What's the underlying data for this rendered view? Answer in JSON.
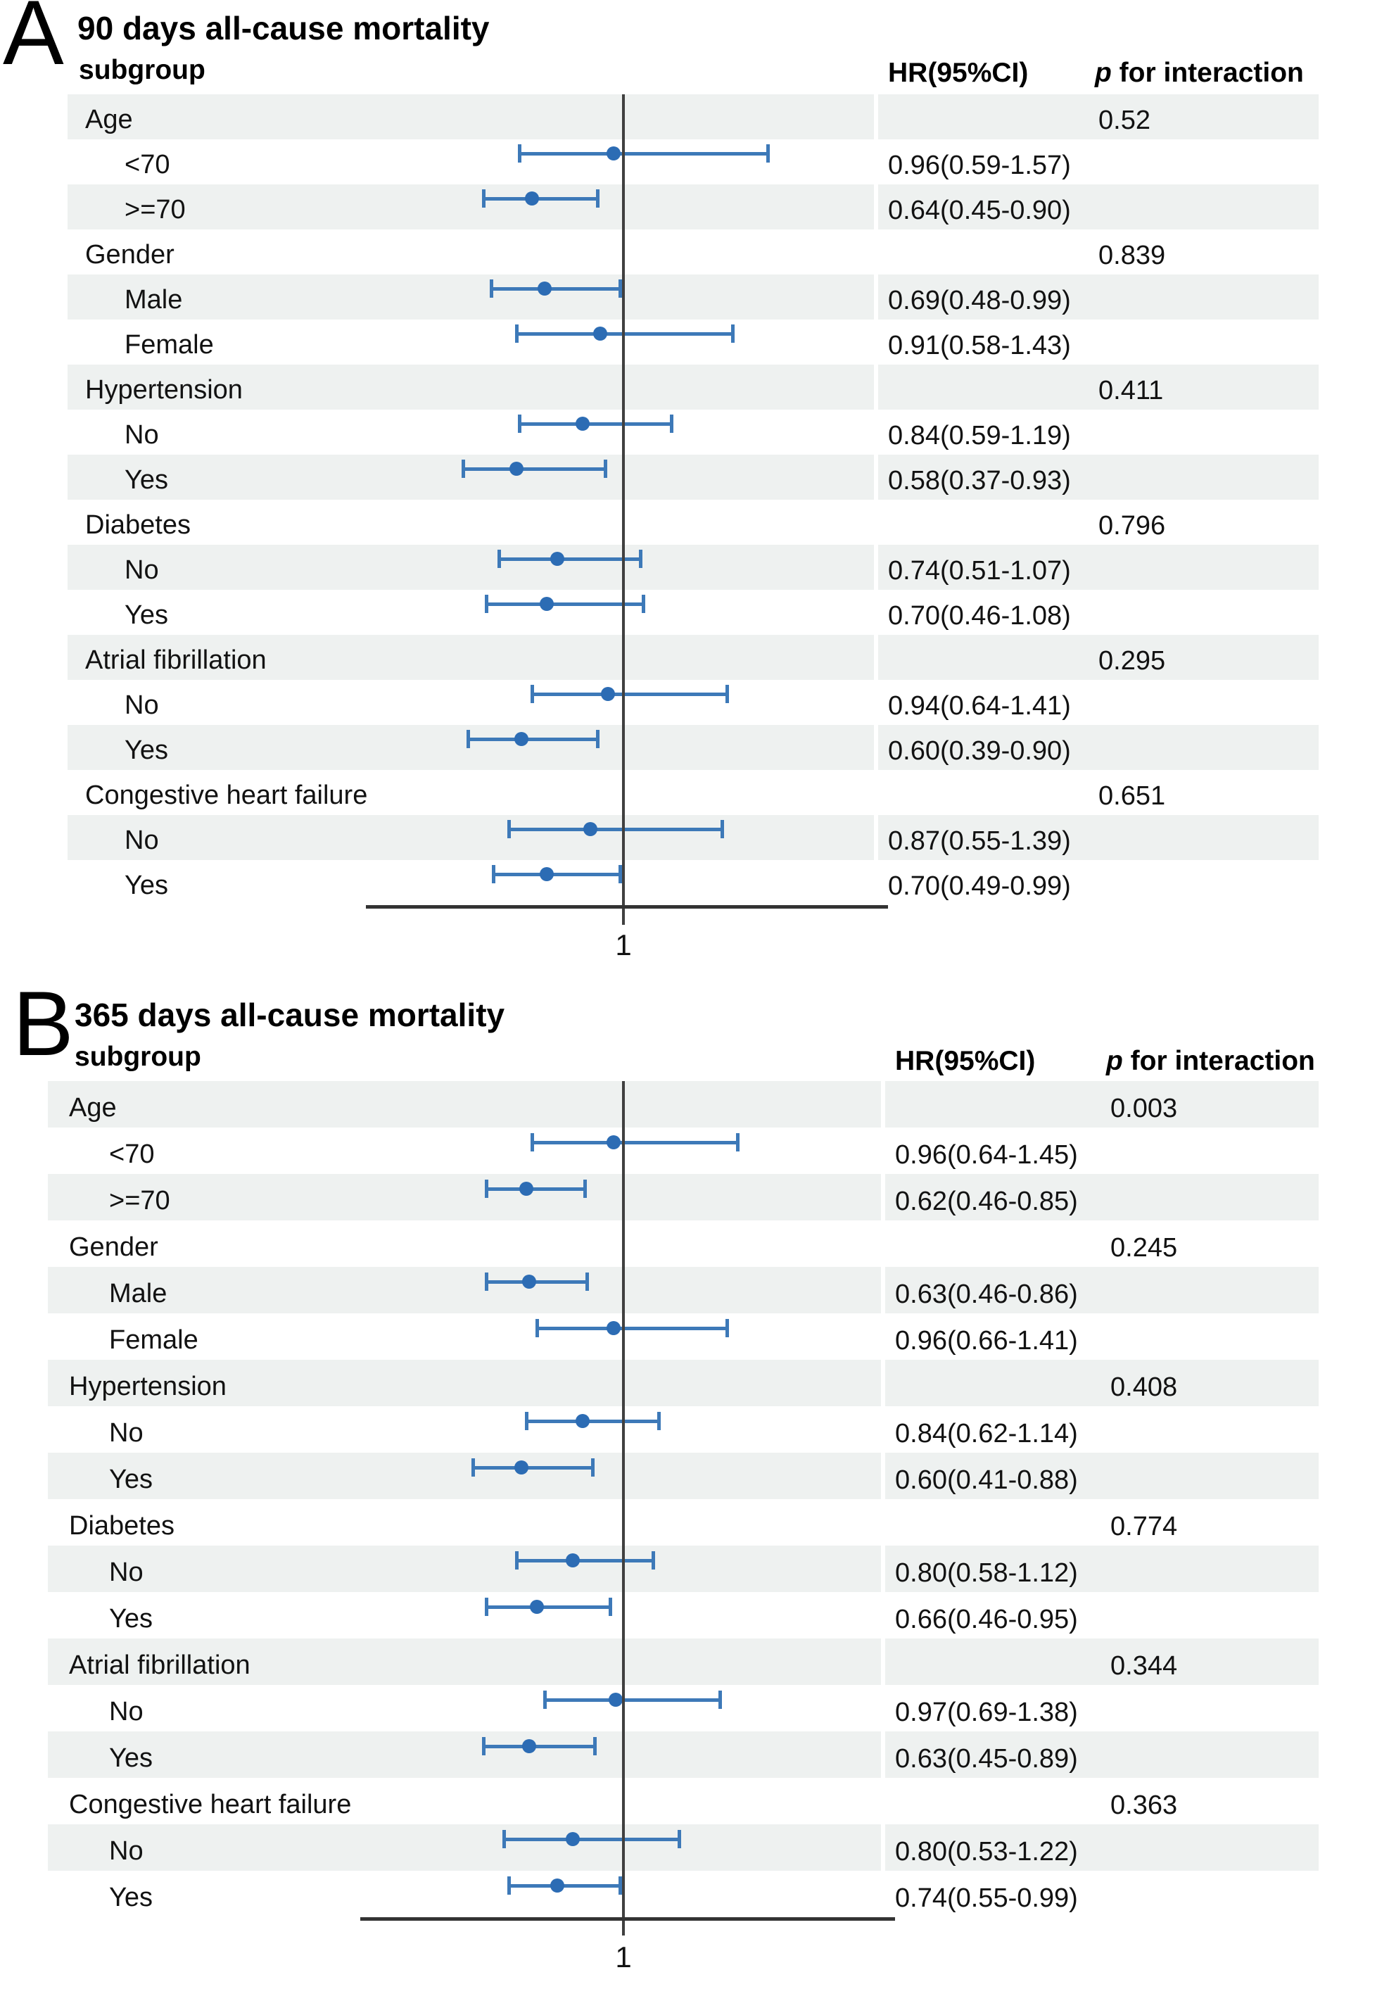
{
  "figure_type": "forest-plot",
  "colors": {
    "band": "#eef1f0",
    "ci_bar": "#3d79b8",
    "marker": "#2c6cb4",
    "reference_line": "#404040",
    "axis_line": "#333333",
    "text": "#121212"
  },
  "chart_data": {
    "type": "forest",
    "x_axis": {
      "scale": "linear",
      "reference_value": 1,
      "tick_labels": [
        "1"
      ]
    },
    "panels": [
      {
        "letter": "A",
        "title": "90 days all-cause mortality",
        "columns": {
          "subgroup": "subgroup",
          "hr": "HR(95%CI)",
          "p_italic": "p",
          "p_rest": " for interaction"
        },
        "axis_tick": "1",
        "rows": [
          {
            "kind": "group",
            "label": "Age",
            "p": "0.52"
          },
          {
            "kind": "item",
            "label": "<70",
            "hr_text": "0.96(0.59-1.57)",
            "est": 0.96,
            "lo": 0.59,
            "hi": 1.57
          },
          {
            "kind": "item",
            "label": ">=70",
            "hr_text": "0.64(0.45-0.90)",
            "est": 0.64,
            "lo": 0.45,
            "hi": 0.9
          },
          {
            "kind": "group",
            "label": "Gender",
            "p": "0.839"
          },
          {
            "kind": "item",
            "label": "Male",
            "hr_text": "0.69(0.48-0.99)",
            "est": 0.69,
            "lo": 0.48,
            "hi": 0.99
          },
          {
            "kind": "item",
            "label": "Female",
            "hr_text": "0.91(0.58-1.43)",
            "est": 0.91,
            "lo": 0.58,
            "hi": 1.43
          },
          {
            "kind": "group",
            "label": "Hypertension",
            "p": "0.411"
          },
          {
            "kind": "item",
            "label": "No",
            "hr_text": "0.84(0.59-1.19)",
            "est": 0.84,
            "lo": 0.59,
            "hi": 1.19
          },
          {
            "kind": "item",
            "label": "Yes",
            "hr_text": "0.58(0.37-0.93)",
            "est": 0.58,
            "lo": 0.37,
            "hi": 0.93
          },
          {
            "kind": "group",
            "label": "Diabetes",
            "p": "0.796"
          },
          {
            "kind": "item",
            "label": "No",
            "hr_text": "0.74(0.51-1.07)",
            "est": 0.74,
            "lo": 0.51,
            "hi": 1.07
          },
          {
            "kind": "item",
            "label": "Yes",
            "hr_text": "0.70(0.46-1.08)",
            "est": 0.7,
            "lo": 0.46,
            "hi": 1.08
          },
          {
            "kind": "group",
            "label": "Atrial fibrillation",
            "p": "0.295"
          },
          {
            "kind": "item",
            "label": "No",
            "hr_text": "0.94(0.64-1.41)",
            "est": 0.94,
            "lo": 0.64,
            "hi": 1.41
          },
          {
            "kind": "item",
            "label": "Yes",
            "hr_text": "0.60(0.39-0.90)",
            "est": 0.6,
            "lo": 0.39,
            "hi": 0.9
          },
          {
            "kind": "group",
            "label": "Congestive heart failure",
            "p": "0.651"
          },
          {
            "kind": "item",
            "label": "No",
            "hr_text": "0.87(0.55-1.39)",
            "est": 0.87,
            "lo": 0.55,
            "hi": 1.39
          },
          {
            "kind": "item",
            "label": "Yes",
            "hr_text": "0.70(0.49-0.99)",
            "est": 0.7,
            "lo": 0.49,
            "hi": 0.99
          }
        ]
      },
      {
        "letter": "B",
        "title": "365 days all-cause mortality",
        "columns": {
          "subgroup": "subgroup",
          "hr": "HR(95%CI)",
          "p_italic": "p",
          "p_rest": " for interaction"
        },
        "axis_tick": "1",
        "rows": [
          {
            "kind": "group",
            "label": "Age",
            "p": "0.003"
          },
          {
            "kind": "item",
            "label": "<70",
            "hr_text": "0.96(0.64-1.45)",
            "est": 0.96,
            "lo": 0.64,
            "hi": 1.45
          },
          {
            "kind": "item",
            "label": ">=70",
            "hr_text": "0.62(0.46-0.85)",
            "est": 0.62,
            "lo": 0.46,
            "hi": 0.85
          },
          {
            "kind": "group",
            "label": "Gender",
            "p": "0.245"
          },
          {
            "kind": "item",
            "label": "Male",
            "hr_text": "0.63(0.46-0.86)",
            "est": 0.63,
            "lo": 0.46,
            "hi": 0.86
          },
          {
            "kind": "item",
            "label": "Female",
            "hr_text": "0.96(0.66-1.41)",
            "est": 0.96,
            "lo": 0.66,
            "hi": 1.41
          },
          {
            "kind": "group",
            "label": "Hypertension",
            "p": "0.408"
          },
          {
            "kind": "item",
            "label": "No",
            "hr_text": "0.84(0.62-1.14)",
            "est": 0.84,
            "lo": 0.62,
            "hi": 1.14
          },
          {
            "kind": "item",
            "label": "Yes",
            "hr_text": "0.60(0.41-0.88)",
            "est": 0.6,
            "lo": 0.41,
            "hi": 0.88
          },
          {
            "kind": "group",
            "label": "Diabetes",
            "p": "0.774"
          },
          {
            "kind": "item",
            "label": "No",
            "hr_text": "0.80(0.58-1.12)",
            "est": 0.8,
            "lo": 0.58,
            "hi": 1.12
          },
          {
            "kind": "item",
            "label": "Yes",
            "hr_text": "0.66(0.46-0.95)",
            "est": 0.66,
            "lo": 0.46,
            "hi": 0.95
          },
          {
            "kind": "group",
            "label": "Atrial fibrillation",
            "p": "0.344"
          },
          {
            "kind": "item",
            "label": "No",
            "hr_text": "0.97(0.69-1.38)",
            "est": 0.97,
            "lo": 0.69,
            "hi": 1.38
          },
          {
            "kind": "item",
            "label": "Yes",
            "hr_text": "0.63(0.45-0.89)",
            "est": 0.63,
            "lo": 0.45,
            "hi": 0.89
          },
          {
            "kind": "group",
            "label": "Congestive heart failure",
            "p": "0.363"
          },
          {
            "kind": "item",
            "label": "No",
            "hr_text": "0.80(0.53-1.22)",
            "est": 0.8,
            "lo": 0.53,
            "hi": 1.22
          },
          {
            "kind": "item",
            "label": "Yes",
            "hr_text": "0.74(0.55-0.99)",
            "est": 0.74,
            "lo": 0.55,
            "hi": 0.99
          }
        ]
      }
    ]
  }
}
